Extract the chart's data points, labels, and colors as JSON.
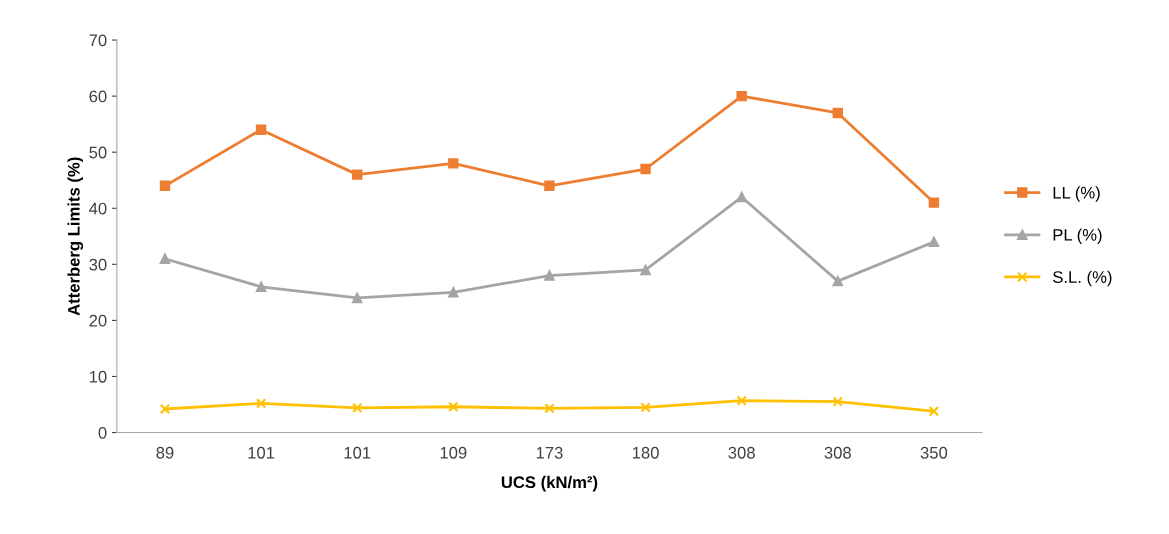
{
  "chart_data": {
    "type": "line",
    "xlabel": "UCS (kN/m²)",
    "ylabel": "Atterberg Limits (%)",
    "categories": [
      "89",
      "101",
      "101",
      "109",
      "173",
      "180",
      "308",
      "308",
      "350"
    ],
    "ylim": [
      0,
      70
    ],
    "yticks": [
      0,
      10,
      20,
      30,
      40,
      50,
      60,
      70
    ],
    "grid": false,
    "legend": "right",
    "series": [
      {
        "name": "LL (%)",
        "color": "#ed7d31",
        "marker": "square",
        "values": [
          44,
          54,
          46,
          48,
          44,
          47,
          60,
          57,
          41
        ]
      },
      {
        "name": "PL (%)",
        "color": "#a5a5a5",
        "marker": "triangle",
        "values": [
          31,
          26,
          24,
          25,
          28,
          29,
          42,
          27,
          34
        ]
      },
      {
        "name": "S.L. (%)",
        "color": "#ffc000",
        "marker": "cross",
        "values": [
          4.2,
          5.2,
          4.4,
          4.6,
          4.3,
          4.5,
          5.7,
          5.5,
          3.8
        ]
      }
    ]
  }
}
